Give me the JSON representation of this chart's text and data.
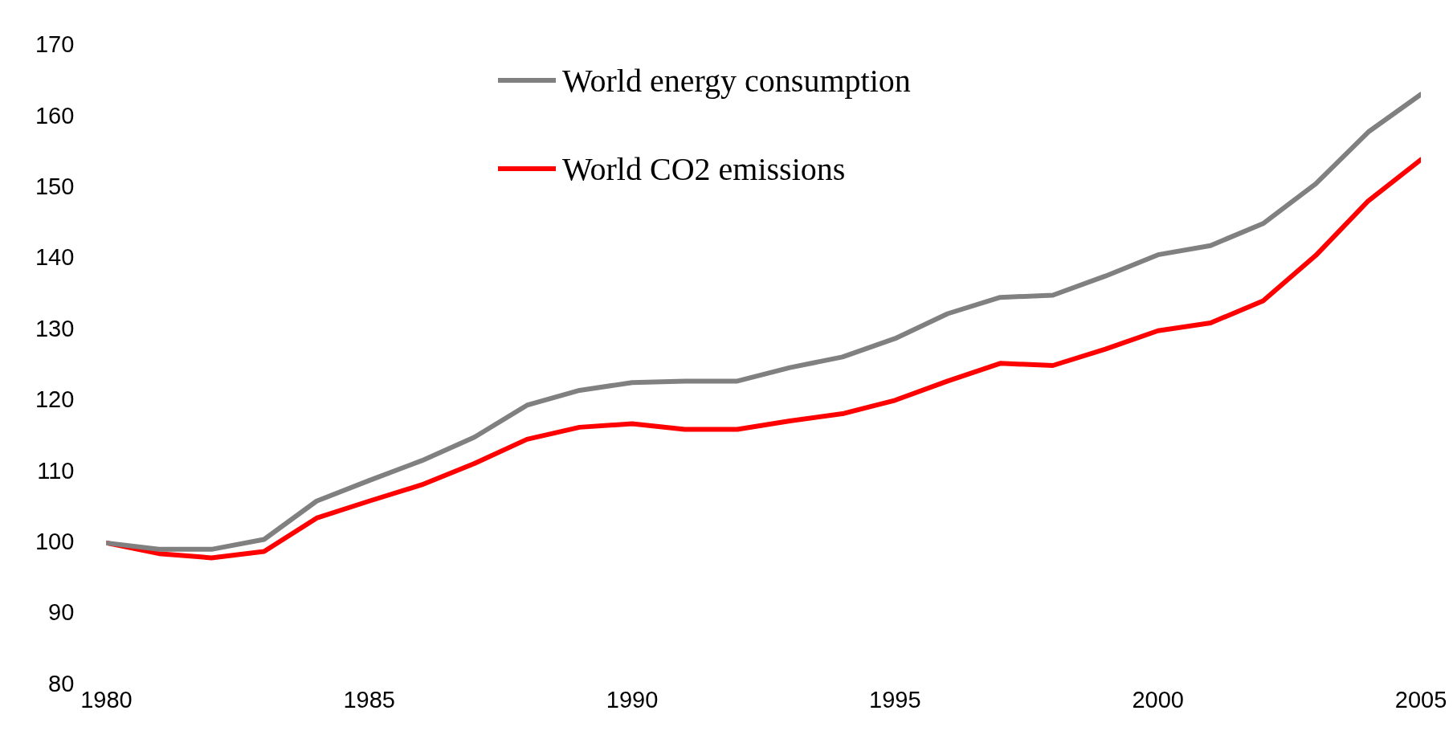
{
  "chart_data": {
    "type": "line",
    "x": [
      1980,
      1981,
      1982,
      1983,
      1984,
      1985,
      1986,
      1987,
      1988,
      1989,
      1990,
      1991,
      1992,
      1993,
      1994,
      1995,
      1996,
      1997,
      1998,
      1999,
      2000,
      2001,
      2002,
      2003,
      2004,
      2005
    ],
    "series": [
      {
        "name": "World energy consumption",
        "color": "#808080",
        "values": [
          100,
          99.1,
          99.1,
          100.5,
          105.9,
          108.8,
          111.6,
          114.9,
          119.4,
          121.5,
          122.6,
          122.8,
          122.8,
          124.7,
          126.2,
          128.8,
          132.3,
          134.6,
          134.9,
          137.6,
          140.6,
          141.9,
          145,
          150.6,
          157.9,
          163.2
        ]
      },
      {
        "name": "World CO2 emissions",
        "color": "#ff0000",
        "values": [
          100,
          98.5,
          97.9,
          98.8,
          103.5,
          105.9,
          108.2,
          111.2,
          114.6,
          116.3,
          116.8,
          116,
          116,
          117.2,
          118.2,
          120.1,
          122.8,
          125.3,
          125,
          127.3,
          129.9,
          131,
          134.1,
          140.5,
          148.2,
          154
        ]
      }
    ],
    "xlim": [
      1980,
      2005
    ],
    "xticks": [
      1980,
      1985,
      1990,
      1995,
      2000,
      2005
    ],
    "ylim": [
      80,
      170
    ],
    "yticks": [
      80,
      90,
      100,
      110,
      120,
      130,
      140,
      150,
      160,
      170
    ],
    "grid": false,
    "legend": "top",
    "marker": "none",
    "line_style": "solid"
  }
}
